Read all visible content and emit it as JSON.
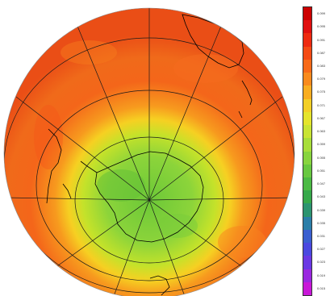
{
  "map": {
    "title": "",
    "projection": "orthographic-south-polar",
    "land_outline_color": "#000000",
    "graticule_color": "#1a1a1a"
  },
  "colorbar": {
    "colors": [
      "#cc0000",
      "#e01010",
      "#ee2a10",
      "#f44a14",
      "#f86a18",
      "#f98a1c",
      "#f9ad20",
      "#f3cf26",
      "#e5e42c",
      "#c9e434",
      "#a8de3a",
      "#88d43e",
      "#68c840",
      "#4cba44",
      "#36a84a",
      "#2c9470",
      "#2b7ea8",
      "#3a5fd0",
      "#4a48e0",
      "#6a38e4",
      "#9a28e0",
      "#c818d8"
    ],
    "labels": [
      "0.099",
      "0.095",
      "0.091",
      "0.087",
      "0.083",
      "0.079",
      "0.075",
      "0.071",
      "0.067",
      "0.063",
      "0.059",
      "0.055",
      "0.051",
      "0.047",
      "0.043",
      "0.039",
      "0.035",
      "0.031",
      "0.027",
      "0.023",
      "0.019",
      "0.015"
    ]
  }
}
